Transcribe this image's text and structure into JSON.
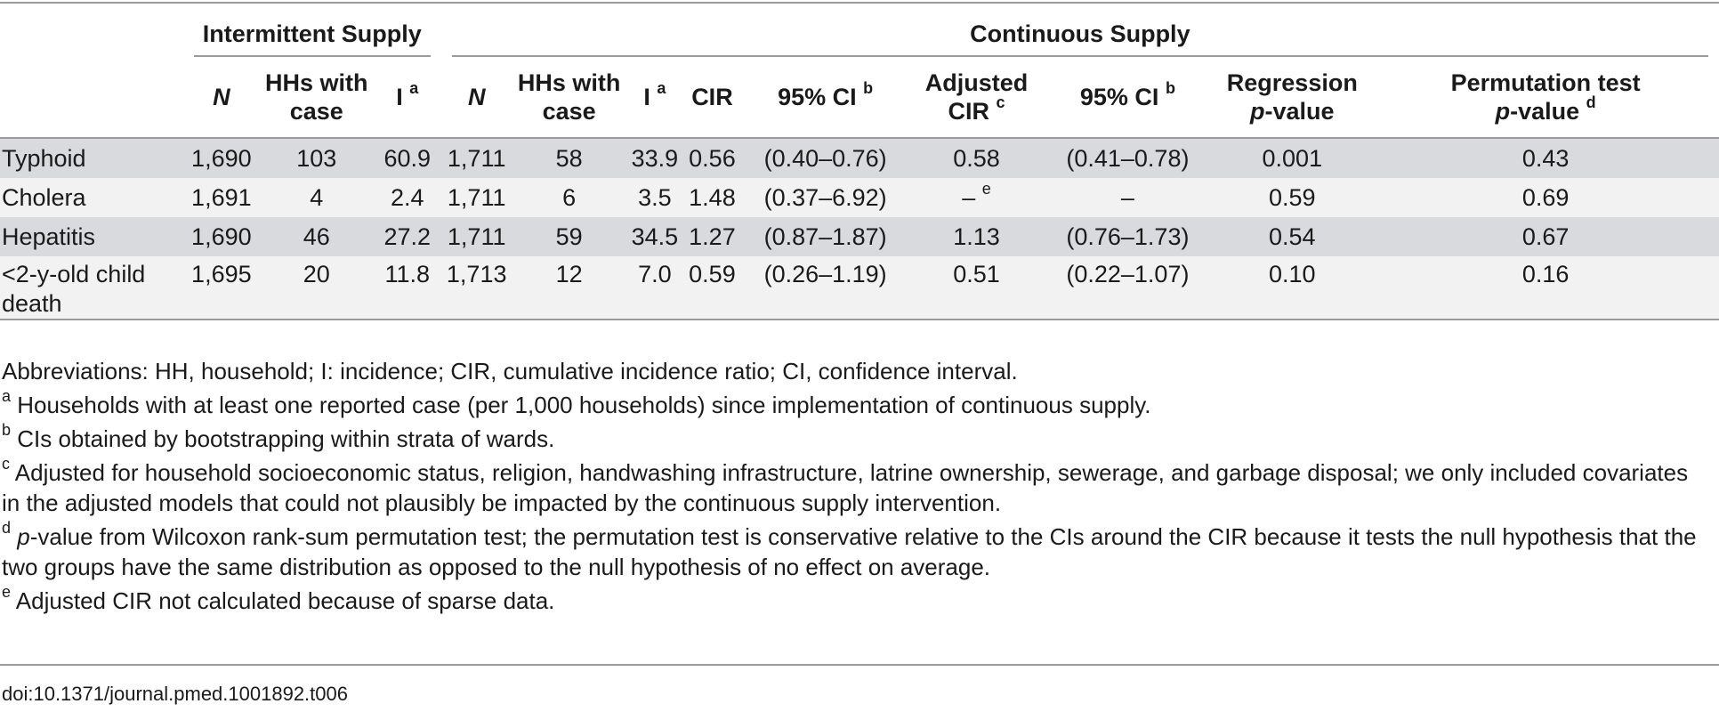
{
  "table": {
    "groups": {
      "intermittent": "Intermittent Supply",
      "continuous": "Continuous Supply"
    },
    "headers": {
      "n": "N",
      "hhs_case": [
        "HHs with",
        "case"
      ],
      "i": "I",
      "i_sup": "a",
      "cir": "CIR",
      "ci": "95% CI",
      "ci_sup": "b",
      "adj_cir": [
        "Adjusted",
        "CIR"
      ],
      "adj_cir_sup": "c",
      "adj_ci": "95% CI",
      "adj_ci_sup": "b",
      "regression": [
        "Regression",
        "-value"
      ],
      "regression_p": "p",
      "permutation": [
        "Permutation test",
        "-value"
      ],
      "permutation_p": "p",
      "permutation_sup": "d"
    },
    "rows": [
      {
        "label": [
          "Typhoid"
        ],
        "int_n": "1,690",
        "int_hhs": "103",
        "int_i": "60.9",
        "con_n": "1,711",
        "con_hhs": "58",
        "con_i": "33.9",
        "cir": "0.56",
        "ci": "(0.40–0.76)",
        "adj_cir": "0.58",
        "adj_cir_sup": "",
        "adj_ci": "(0.41–0.78)",
        "reg_p": "0.001",
        "perm_p": "0.43"
      },
      {
        "label": [
          "Cholera"
        ],
        "int_n": "1,691",
        "int_hhs": "4",
        "int_i": "2.4",
        "con_n": "1,711",
        "con_hhs": "6",
        "con_i": "3.5",
        "cir": "1.48",
        "ci": "(0.37–6.92)",
        "adj_cir": "–",
        "adj_cir_sup": "e",
        "adj_ci": "–",
        "reg_p": "0.59",
        "perm_p": "0.69"
      },
      {
        "label": [
          "Hepatitis"
        ],
        "int_n": "1,690",
        "int_hhs": "46",
        "int_i": "27.2",
        "con_n": "1,711",
        "con_hhs": "59",
        "con_i": "34.5",
        "cir": "1.27",
        "ci": "(0.87–1.87)",
        "adj_cir": "1.13",
        "adj_cir_sup": "",
        "adj_ci": "(0.76–1.73)",
        "reg_p": "0.54",
        "perm_p": "0.67"
      },
      {
        "label": [
          "<2-y-old child",
          "death"
        ],
        "int_n": "1,695",
        "int_hhs": "20",
        "int_i": "11.8",
        "con_n": "1,713",
        "con_hhs": "12",
        "con_i": "7.0",
        "cir": "0.59",
        "ci": "(0.26–1.19)",
        "adj_cir": "0.51",
        "adj_cir_sup": "",
        "adj_ci": "(0.22–1.07)",
        "reg_p": "0.10",
        "perm_p": "0.16"
      }
    ]
  },
  "notes": {
    "abbreviations": "Abbreviations: HH, household; I: incidence; CIR, cumulative incidence ratio; CI, confidence interval.",
    "a": {
      "sup": "a",
      "text": " Households with at least one reported case (per 1,000 households) since implementation of continuous supply."
    },
    "b": {
      "sup": "b",
      "text": " CIs obtained by bootstrapping within strata of wards."
    },
    "c": {
      "sup": "c",
      "text": " Adjusted for household socioeconomic status, religion, handwashing infrastructure, latrine ownership, sewerage, and garbage disposal; we only included covariates in the adjusted models that could not plausibly be impacted by the continuous supply intervention."
    },
    "d": {
      "sup": "d",
      "p": "p",
      "text": "-value from Wilcoxon rank-sum permutation test; the permutation test is conservative relative to the CIs around the CIR because it tests the null hypothesis that the two groups have the same distribution as opposed to the null hypothesis of no effect on average."
    },
    "e": {
      "sup": "e",
      "text": " Adjusted CIR not calculated because of sparse data."
    }
  },
  "doi": "doi:10.1371/journal.pmed.1001892.t006"
}
